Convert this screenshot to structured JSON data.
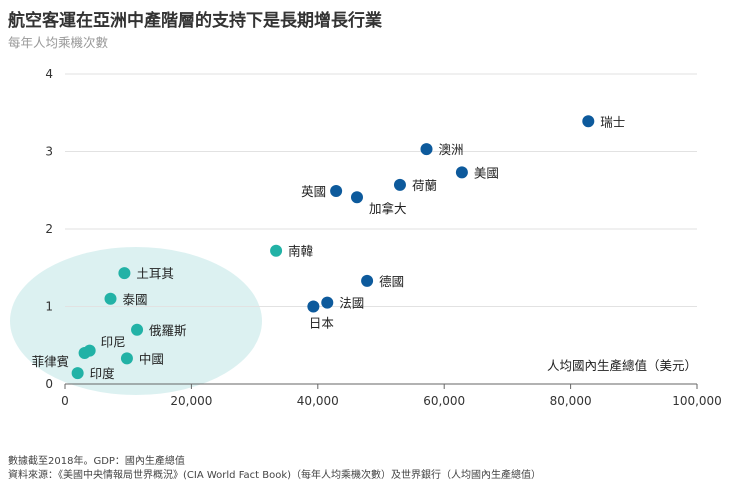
{
  "title": "航空客運在亞洲中產階層的支持下是長期增長行業",
  "subtitle": "每年人均乘機次數",
  "footer": {
    "note": "數據截至2018年。GDP：國內生產總值",
    "source": "資料來源：《美國中央情報局世界概況》(CIA World Fact Book)（每年人均乘機次數）及世界銀行（人均國內生產總值）"
  },
  "colors": {
    "developed": "#0d5a9c",
    "asia": "#22b2a6",
    "ellipse": "#d6efee",
    "grid": "#e2e2e2",
    "axis": "#666666"
  },
  "chart_data": {
    "type": "scatter",
    "title": "航空客運在亞洲中產階層的支持下是長期增長行業",
    "xlabel": "人均國內生產總值（美元）",
    "ylabel": "每年人均乘機次數",
    "xlim": [
      0,
      100000
    ],
    "ylim": [
      0,
      4
    ],
    "x_ticks": [
      {
        "value": 0,
        "label": "0"
      },
      {
        "value": 20000,
        "label": "20,000"
      },
      {
        "value": 40000,
        "label": "40,000"
      },
      {
        "value": 60000,
        "label": "60,000"
      },
      {
        "value": 80000,
        "label": "80,000"
      },
      {
        "value": 100000,
        "label": "100,000"
      }
    ],
    "y_ticks": [
      {
        "value": 0,
        "label": "0"
      },
      {
        "value": 1,
        "label": "1"
      },
      {
        "value": 2,
        "label": "2"
      },
      {
        "value": 3,
        "label": "3"
      },
      {
        "value": 4,
        "label": "4"
      }
    ],
    "grid": "horizontal",
    "highlight": "ellipse around Asian emerging economies",
    "points": [
      {
        "label": "瑞士",
        "x": 82800,
        "y": 3.39,
        "group": "developed",
        "label_pos": "right"
      },
      {
        "label": "澳洲",
        "x": 57200,
        "y": 3.03,
        "group": "developed",
        "label_pos": "right"
      },
      {
        "label": "美國",
        "x": 62800,
        "y": 2.73,
        "group": "developed",
        "label_pos": "right"
      },
      {
        "label": "荷蘭",
        "x": 53000,
        "y": 2.57,
        "group": "developed",
        "label_pos": "right"
      },
      {
        "label": "英國",
        "x": 42900,
        "y": 2.49,
        "group": "developed",
        "label_pos": "left"
      },
      {
        "label": "加拿大",
        "x": 46200,
        "y": 2.41,
        "group": "developed",
        "label_pos": "below-right"
      },
      {
        "label": "德國",
        "x": 47800,
        "y": 1.33,
        "group": "developed",
        "label_pos": "right"
      },
      {
        "label": "法國",
        "x": 41500,
        "y": 1.05,
        "group": "developed",
        "label_pos": "right"
      },
      {
        "label": "日本",
        "x": 39300,
        "y": 1.0,
        "group": "developed",
        "label_pos": "below"
      },
      {
        "label": "南韓",
        "x": 33400,
        "y": 1.72,
        "group": "asia",
        "label_pos": "right"
      },
      {
        "label": "土耳其",
        "x": 9400,
        "y": 1.43,
        "group": "asia",
        "label_pos": "right"
      },
      {
        "label": "泰國",
        "x": 7200,
        "y": 1.1,
        "group": "asia",
        "label_pos": "right"
      },
      {
        "label": "俄羅斯",
        "x": 11400,
        "y": 0.7,
        "group": "asia",
        "label_pos": "right"
      },
      {
        "label": "印尼",
        "x": 3900,
        "y": 0.43,
        "group": "asia",
        "label_pos": "right-up"
      },
      {
        "label": "菲律賓",
        "x": 3100,
        "y": 0.4,
        "group": "asia",
        "label_pos": "left-below"
      },
      {
        "label": "中國",
        "x": 9800,
        "y": 0.33,
        "group": "asia",
        "label_pos": "right"
      },
      {
        "label": "印度",
        "x": 2000,
        "y": 0.14,
        "group": "asia",
        "label_pos": "right"
      }
    ]
  }
}
